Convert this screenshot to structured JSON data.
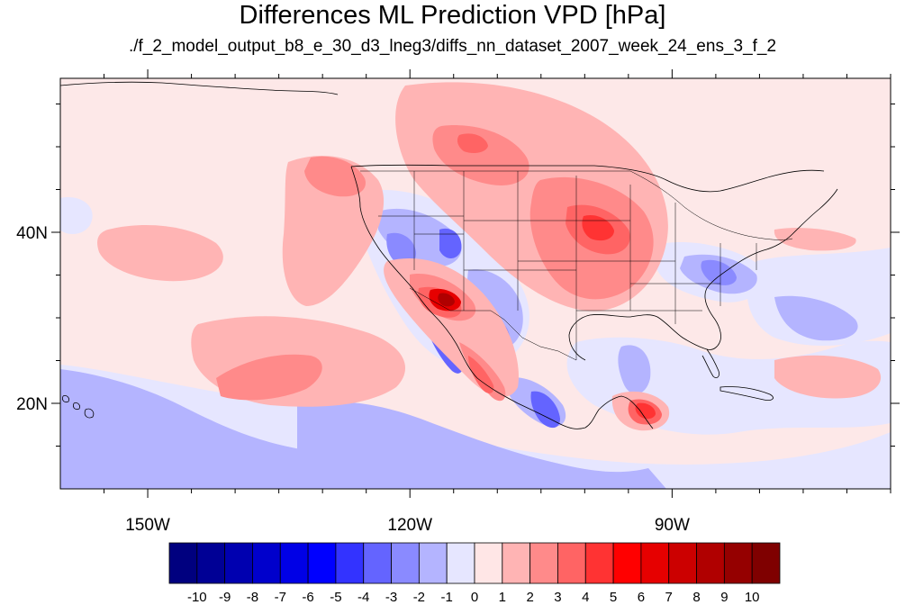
{
  "title": "Differences ML Prediction VPD [hPa]",
  "subtitle": "./f_2_model_output_b8_e_30_d3_lneg3/diffs_nn_dataset_2007_week_24_ens_3_f_2",
  "map": {
    "lon_range": [
      -160,
      -65
    ],
    "lat_range": [
      10,
      58
    ],
    "lon_ticks": [
      {
        "value": -150,
        "label": "150W"
      },
      {
        "value": -120,
        "label": "120W"
      },
      {
        "value": -90,
        "label": "90W"
      }
    ],
    "lat_ticks": [
      {
        "value": 40,
        "label": "40N"
      },
      {
        "value": 20,
        "label": "20N"
      }
    ],
    "background_color": "#fde8e8"
  },
  "colorbar": {
    "colors": [
      "#00007f",
      "#000095",
      "#0000b0",
      "#0000cc",
      "#0000e6",
      "#0000ff",
      "#3333ff",
      "#6464ff",
      "#8a8aff",
      "#b4b4ff",
      "#e6e6ff",
      "#ffe6e6",
      "#ffb4b4",
      "#ff8a8a",
      "#ff6464",
      "#ff3333",
      "#ff0000",
      "#e60000",
      "#cc0000",
      "#b00000",
      "#950000",
      "#7f0000"
    ],
    "labels": [
      "-10",
      "-9",
      "-8",
      "-7",
      "-6",
      "-5",
      "-4",
      "-3",
      "-2",
      "-1",
      "0",
      "1",
      "2",
      "3",
      "4",
      "5",
      "6",
      "7",
      "8",
      "9",
      "10"
    ]
  }
}
